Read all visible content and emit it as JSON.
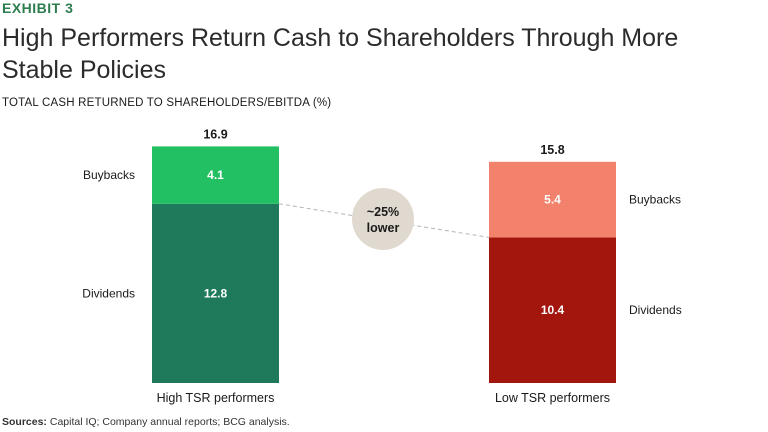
{
  "exhibit": "EXHIBIT 3",
  "title": "High Performers Return Cash to Shareholders Through More Stable Policies",
  "subtitle": "TOTAL CASH RETURNED TO SHAREHOLDERS/EBITDA (%)",
  "sources_label": "Sources:",
  "sources_text": " Capital IQ; Company annual reports; BCG analysis.",
  "chart_data": {
    "type": "bar",
    "stacked": true,
    "categories": [
      "High TSR performers",
      "Low TSR performers"
    ],
    "totals": [
      "16.9",
      "15.8"
    ],
    "series": [
      {
        "name": "Dividends",
        "values": [
          12.8,
          10.4
        ],
        "colors": [
          "#1e7a5a",
          "#a3160e"
        ]
      },
      {
        "name": "Buybacks",
        "values": [
          4.1,
          5.4
        ],
        "colors": [
          "#22c062",
          "#f2826c"
        ]
      }
    ],
    "annotation": [
      "~25%",
      "lower"
    ],
    "annotation_color": "#e0d9cf"
  }
}
